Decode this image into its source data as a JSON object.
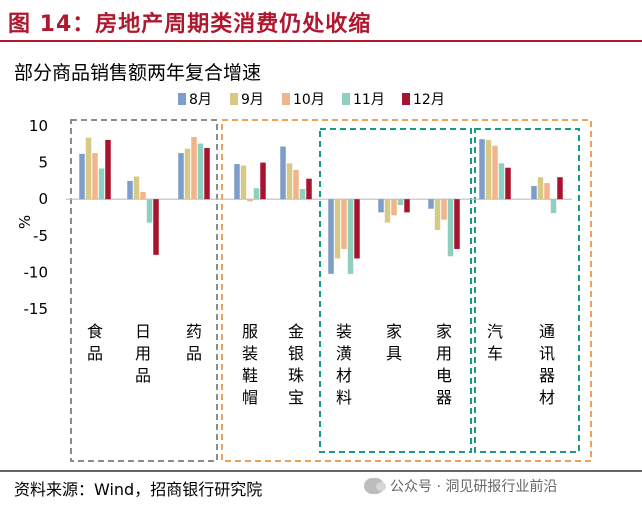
{
  "header": {
    "figure_title": "图 14：房地产周期类消费仍处收缩",
    "source": "资料来源：Wind，招商银行研究院",
    "watermark": "公众号 · 洞见研报行业前沿"
  },
  "colors": {
    "title": "#b0182f",
    "series": [
      "#7f9dc9",
      "#d9c987",
      "#f2b48a",
      "#8ecfc0",
      "#a8132f"
    ],
    "group_box_1": "#8c8c8c",
    "group_box_2": "#e8a25a",
    "group_box_3": "#1a9a84"
  },
  "chart_data": {
    "type": "bar",
    "title": "部分商品销售额两年复合增速",
    "ylabel": "%",
    "ylim": [
      -15,
      10
    ],
    "yticks": [
      10,
      5,
      0,
      -5,
      -10,
      -15
    ],
    "legend_position": "top",
    "categories": [
      "食品",
      "日用品",
      "药品",
      "服装鞋帽",
      "金银珠宝",
      "装潢材料",
      "家具",
      "家用电器",
      "汽车",
      "通讯器材"
    ],
    "series": [
      {
        "name": "8月",
        "values": [
          6.2,
          2.5,
          6.3,
          4.8,
          7.2,
          -10.2,
          -1.8,
          -1.3,
          8.2,
          1.8
        ]
      },
      {
        "name": "9月",
        "values": [
          8.4,
          3.1,
          6.9,
          4.6,
          4.9,
          -8.1,
          -3.2,
          -4.2,
          8.1,
          3.0
        ]
      },
      {
        "name": "10月",
        "values": [
          6.3,
          1.0,
          8.5,
          -0.3,
          4.0,
          -6.8,
          -2.2,
          -2.8,
          7.3,
          2.2
        ]
      },
      {
        "name": "11月",
        "values": [
          4.2,
          -3.2,
          7.6,
          1.5,
          1.4,
          -10.2,
          -0.8,
          -7.8,
          4.9,
          -1.9
        ]
      },
      {
        "name": "12月",
        "values": [
          8.1,
          -7.6,
          7.0,
          5.0,
          2.8,
          -8.1,
          -1.8,
          -6.8,
          4.3,
          3.0
        ]
      }
    ],
    "group_boxes": [
      {
        "name": "box-1",
        "from": 0,
        "to": 2,
        "color": "#8c8c8c"
      },
      {
        "name": "box-2",
        "from": 3,
        "to": 9,
        "color": "#e8a25a"
      },
      {
        "name": "box-3",
        "from": 5,
        "to": 7,
        "color": "#1a9a84"
      },
      {
        "name": "box-4",
        "from": 8,
        "to": 9,
        "color": "#1a9a84"
      }
    ]
  }
}
